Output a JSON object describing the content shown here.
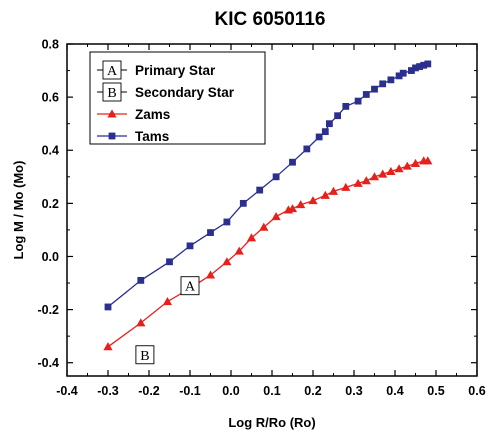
{
  "chart_data": {
    "type": "line",
    "title": "KIC 6050116",
    "xlabel": "Log R/Ro (Ro)",
    "ylabel": "Log M / Mo (Mo)",
    "xlim": [
      -0.4,
      0.6
    ],
    "ylim": [
      -0.45,
      0.8
    ],
    "xticks": [
      "-0.4",
      "-0.3",
      "-0.2",
      "-0.1",
      "0.0",
      "0.1",
      "0.2",
      "0.3",
      "0.4",
      "0.5",
      "0.6"
    ],
    "yticks": [
      "-0.4",
      "-0.2",
      "0.0",
      "0.2",
      "0.4",
      "0.6",
      "0.8"
    ],
    "legend_position": "top-left",
    "legend": [
      {
        "marker": "A",
        "name": "Primary Star"
      },
      {
        "marker": "B",
        "name": "Secondary Star"
      },
      {
        "marker": "triangle",
        "name": "Zams",
        "color": "#e8201c"
      },
      {
        "marker": "square",
        "name": "Tams",
        "color": "#2b2f8e"
      }
    ],
    "series": [
      {
        "name": "Zams",
        "color": "#e8201c",
        "marker": "triangle",
        "x": [
          -0.3,
          -0.22,
          -0.155,
          -0.1,
          -0.05,
          -0.01,
          0.02,
          0.05,
          0.08,
          0.11,
          0.14,
          0.15,
          0.17,
          0.2,
          0.23,
          0.25,
          0.28,
          0.31,
          0.33,
          0.35,
          0.37,
          0.39,
          0.41,
          0.43,
          0.45,
          0.47,
          0.48
        ],
        "y": [
          -0.34,
          -0.25,
          -0.17,
          -0.12,
          -0.07,
          -0.02,
          0.02,
          0.07,
          0.11,
          0.15,
          0.175,
          0.18,
          0.195,
          0.21,
          0.23,
          0.245,
          0.26,
          0.275,
          0.285,
          0.3,
          0.31,
          0.32,
          0.33,
          0.34,
          0.35,
          0.36,
          0.36
        ]
      },
      {
        "name": "Tams",
        "color": "#2b2f8e",
        "marker": "square",
        "x": [
          -0.3,
          -0.22,
          -0.15,
          -0.1,
          -0.05,
          -0.01,
          0.03,
          0.07,
          0.11,
          0.15,
          0.185,
          0.215,
          0.23,
          0.24,
          0.26,
          0.28,
          0.31,
          0.33,
          0.35,
          0.37,
          0.39,
          0.41,
          0.42,
          0.44,
          0.45,
          0.46,
          0.47,
          0.48
        ],
        "y": [
          -0.19,
          -0.09,
          -0.02,
          0.04,
          0.09,
          0.13,
          0.2,
          0.25,
          0.3,
          0.355,
          0.405,
          0.45,
          0.47,
          0.5,
          0.53,
          0.565,
          0.585,
          0.61,
          0.63,
          0.65,
          0.665,
          0.68,
          0.69,
          0.7,
          0.71,
          0.715,
          0.72,
          0.725
        ]
      }
    ],
    "annotations": [
      {
        "text": "A",
        "x": -0.1,
        "y": -0.11
      },
      {
        "text": "B",
        "x": -0.21,
        "y": -0.37
      }
    ]
  }
}
